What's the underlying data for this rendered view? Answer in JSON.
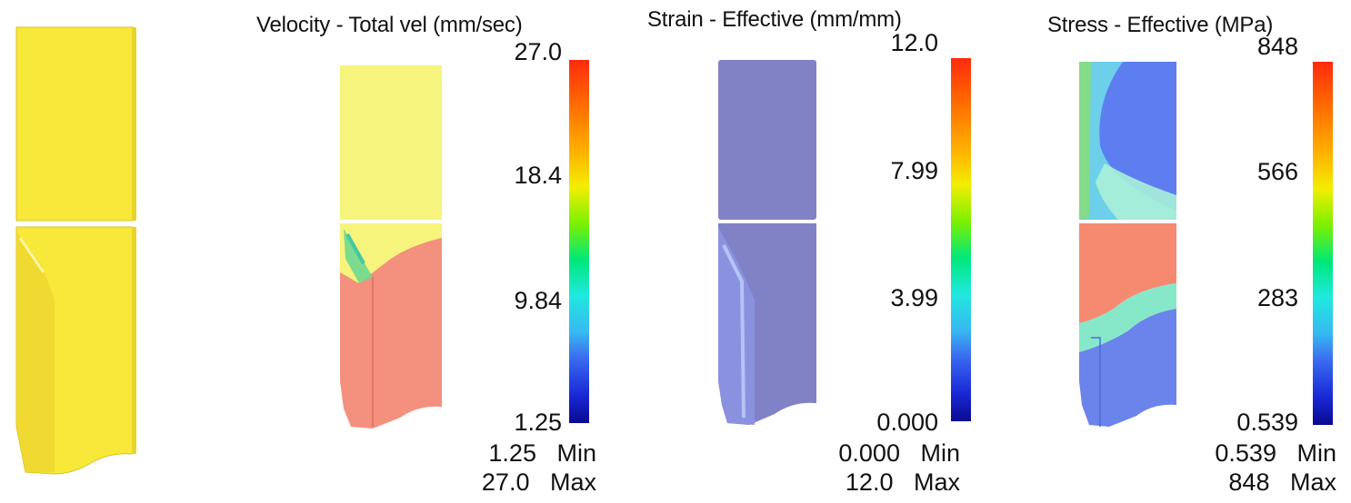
{
  "panels": [
    {
      "title": "Velocity - Total vel (mm/sec)",
      "ticks": [
        "27.0",
        "18.4",
        "9.84",
        "1.25"
      ],
      "min_value": "1.25",
      "min_label": "Min",
      "max_value": "27.0",
      "max_label": "Max"
    },
    {
      "title": "Strain - Effective (mm/mm)",
      "ticks": [
        "12.0",
        "7.99",
        "3.99",
        "0.000"
      ],
      "min_value": "0.000",
      "min_label": "Min",
      "max_value": "12.0",
      "max_label": "Max"
    },
    {
      "title": "Stress - Effective (MPa)",
      "ticks": [
        "848",
        "566",
        "283",
        "0.539"
      ],
      "min_value": "0.539",
      "min_label": "Min",
      "max_value": "848",
      "max_label": "Max"
    }
  ],
  "colors": {
    "workpiece_yellow": "#f7e83a",
    "velocity_top": "#f6f47c",
    "velocity_bottom": "#f4907e",
    "strain_body": "#8182c6",
    "stress_top": "#5e7ef0",
    "stress_bottom": "#f58a70"
  }
}
